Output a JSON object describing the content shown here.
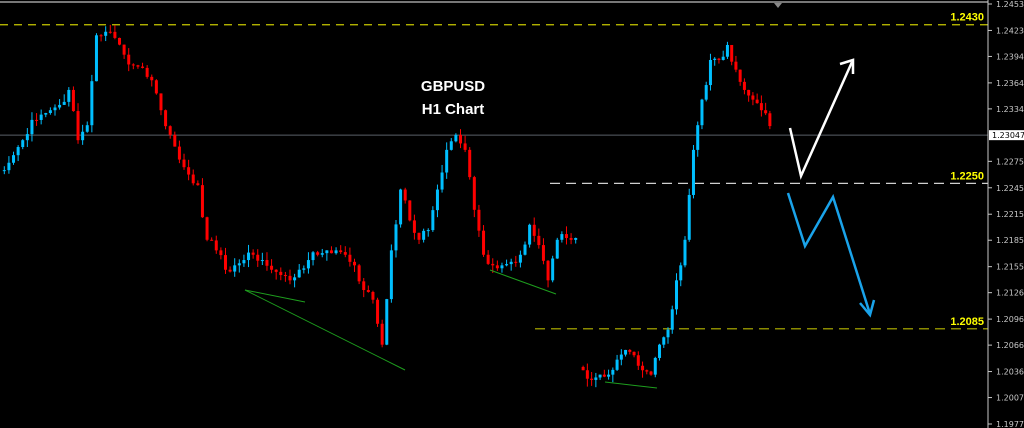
{
  "chart_data": {
    "type": "candlestick",
    "title": "GBPUSD",
    "subtitle": "H1 Chart",
    "ylim": [
      1.1977,
      1.24535
    ],
    "y_ticks": [
      "1.24535",
      "1.24235",
      "1.23940",
      "1.23640",
      "1.23345",
      "1.22750",
      "1.22450",
      "1.22150",
      "1.21855",
      "1.21555",
      "1.21260",
      "1.20960",
      "1.20665",
      "1.20365",
      "1.20070",
      "1.19770"
    ],
    "current_price": "1.23047",
    "grid": false,
    "colors": {
      "up": "#00bfff",
      "down": "#ff0000",
      "background": "#000000",
      "axis": "#c8c8c8",
      "level": "#ffff00"
    },
    "segments": [
      {
        "closes": [
          1.2265,
          1.2282,
          1.2299,
          1.2322,
          1.2328,
          1.2333,
          1.2339,
          1.2356,
          1.2299,
          1.2316,
          1.2418,
          1.2422,
          1.2415,
          1.2396,
          1.2384,
          1.2381,
          1.2367,
          1.2333,
          1.2305,
          1.2277,
          1.226,
          1.2248,
          1.2186,
          1.2174,
          1.2152,
          1.2157,
          1.2163,
          1.2169,
          1.2163,
          1.2152,
          1.2146,
          1.214,
          1.2152,
          1.2163,
          1.2169,
          1.2174,
          1.2174,
          1.2169,
          1.2157,
          1.2129,
          1.2118,
          1.2067,
          1.2174,
          1.2243,
          1.2208,
          1.2186,
          1.2197,
          1.2243,
          1.2288,
          1.2305,
          1.2288,
          1.222,
          1.2169,
          1.2157,
          1.2157,
          1.2161,
          1.2169,
          1.2203,
          1.218,
          1.214,
          1.2186,
          1.2188,
          1.2188
        ]
      },
      {
        "closes": [
          1.2038,
          1.2027,
          1.2033,
          1.2033,
          1.205,
          1.2061,
          1.2055,
          1.2038,
          1.2033,
          1.2067,
          1.2084,
          1.214,
          1.2186,
          1.2288,
          1.2345,
          1.239,
          1.239,
          1.2407,
          1.2379,
          1.2356,
          1.2345,
          1.2333,
          1.2315
        ]
      }
    ],
    "levels": [
      {
        "price": 1.243,
        "label": "1.2430"
      },
      {
        "price": 1.225,
        "label": "1.2250"
      },
      {
        "price": 1.2085,
        "label": "1.2085"
      }
    ],
    "annotations": {
      "projection_up": "white arrow",
      "projection_down": "blue arrow",
      "trendlines": "green"
    }
  }
}
